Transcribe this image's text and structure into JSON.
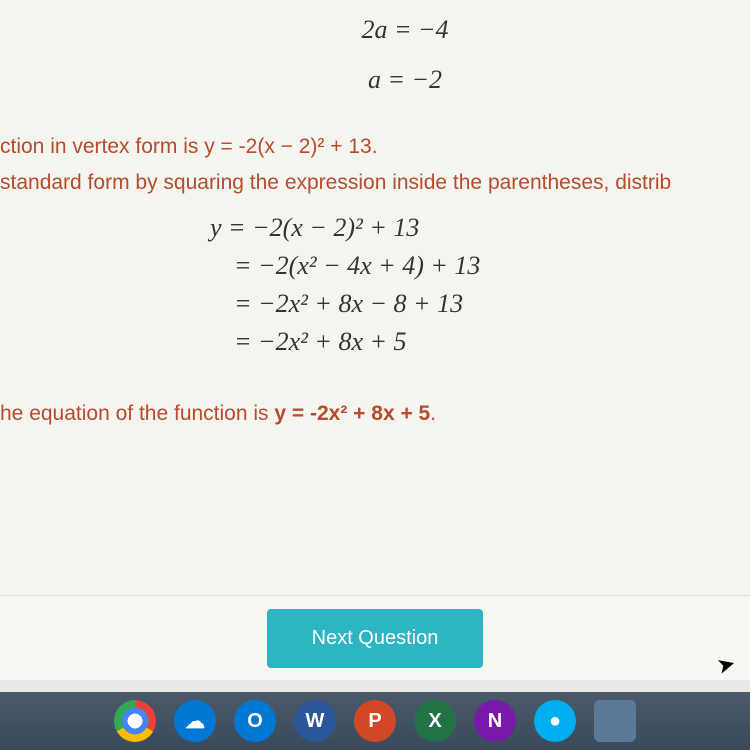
{
  "colors": {
    "body_text": "#b84a2e",
    "math_text": "#333333",
    "button_bg": "#2db5c4",
    "button_text": "#ffffff",
    "content_bg": "#f5f5f0",
    "taskbar_bg": "#3a4a5a"
  },
  "fonts": {
    "math_family": "Times New Roman",
    "math_size": 26,
    "body_family": "Segoe UI",
    "body_size": 21
  },
  "math_top": {
    "line1": "2a = −4",
    "line2": "a = −2"
  },
  "text": {
    "vertex_form": "ction in vertex form is y = -2(x − 2)² + 13.",
    "standard_form_intro": "standard form by squaring the expression inside the parentheses, distrib",
    "conclusion_prefix": "he equation of the function is ",
    "conclusion_equation": "y = -2x² + 8x + 5",
    "conclusion_suffix": "."
  },
  "math_work": {
    "line1": "y = −2(x − 2)² + 13",
    "line2": "= −2(x² − 4x + 4) + 13",
    "line3": "= −2x² + 8x − 8 + 13",
    "line4": "= −2x² + 8x + 5"
  },
  "button": {
    "label": "Next Question"
  },
  "taskbar": {
    "icons": [
      {
        "name": "chrome",
        "letter": ""
      },
      {
        "name": "onedrive",
        "letter": "☁"
      },
      {
        "name": "outlook",
        "letter": "O"
      },
      {
        "name": "word",
        "letter": "W"
      },
      {
        "name": "powerpoint",
        "letter": "P"
      },
      {
        "name": "excel",
        "letter": "X"
      },
      {
        "name": "onenote",
        "letter": "N"
      },
      {
        "name": "skype",
        "letter": "●"
      },
      {
        "name": "app",
        "letter": ""
      }
    ]
  }
}
